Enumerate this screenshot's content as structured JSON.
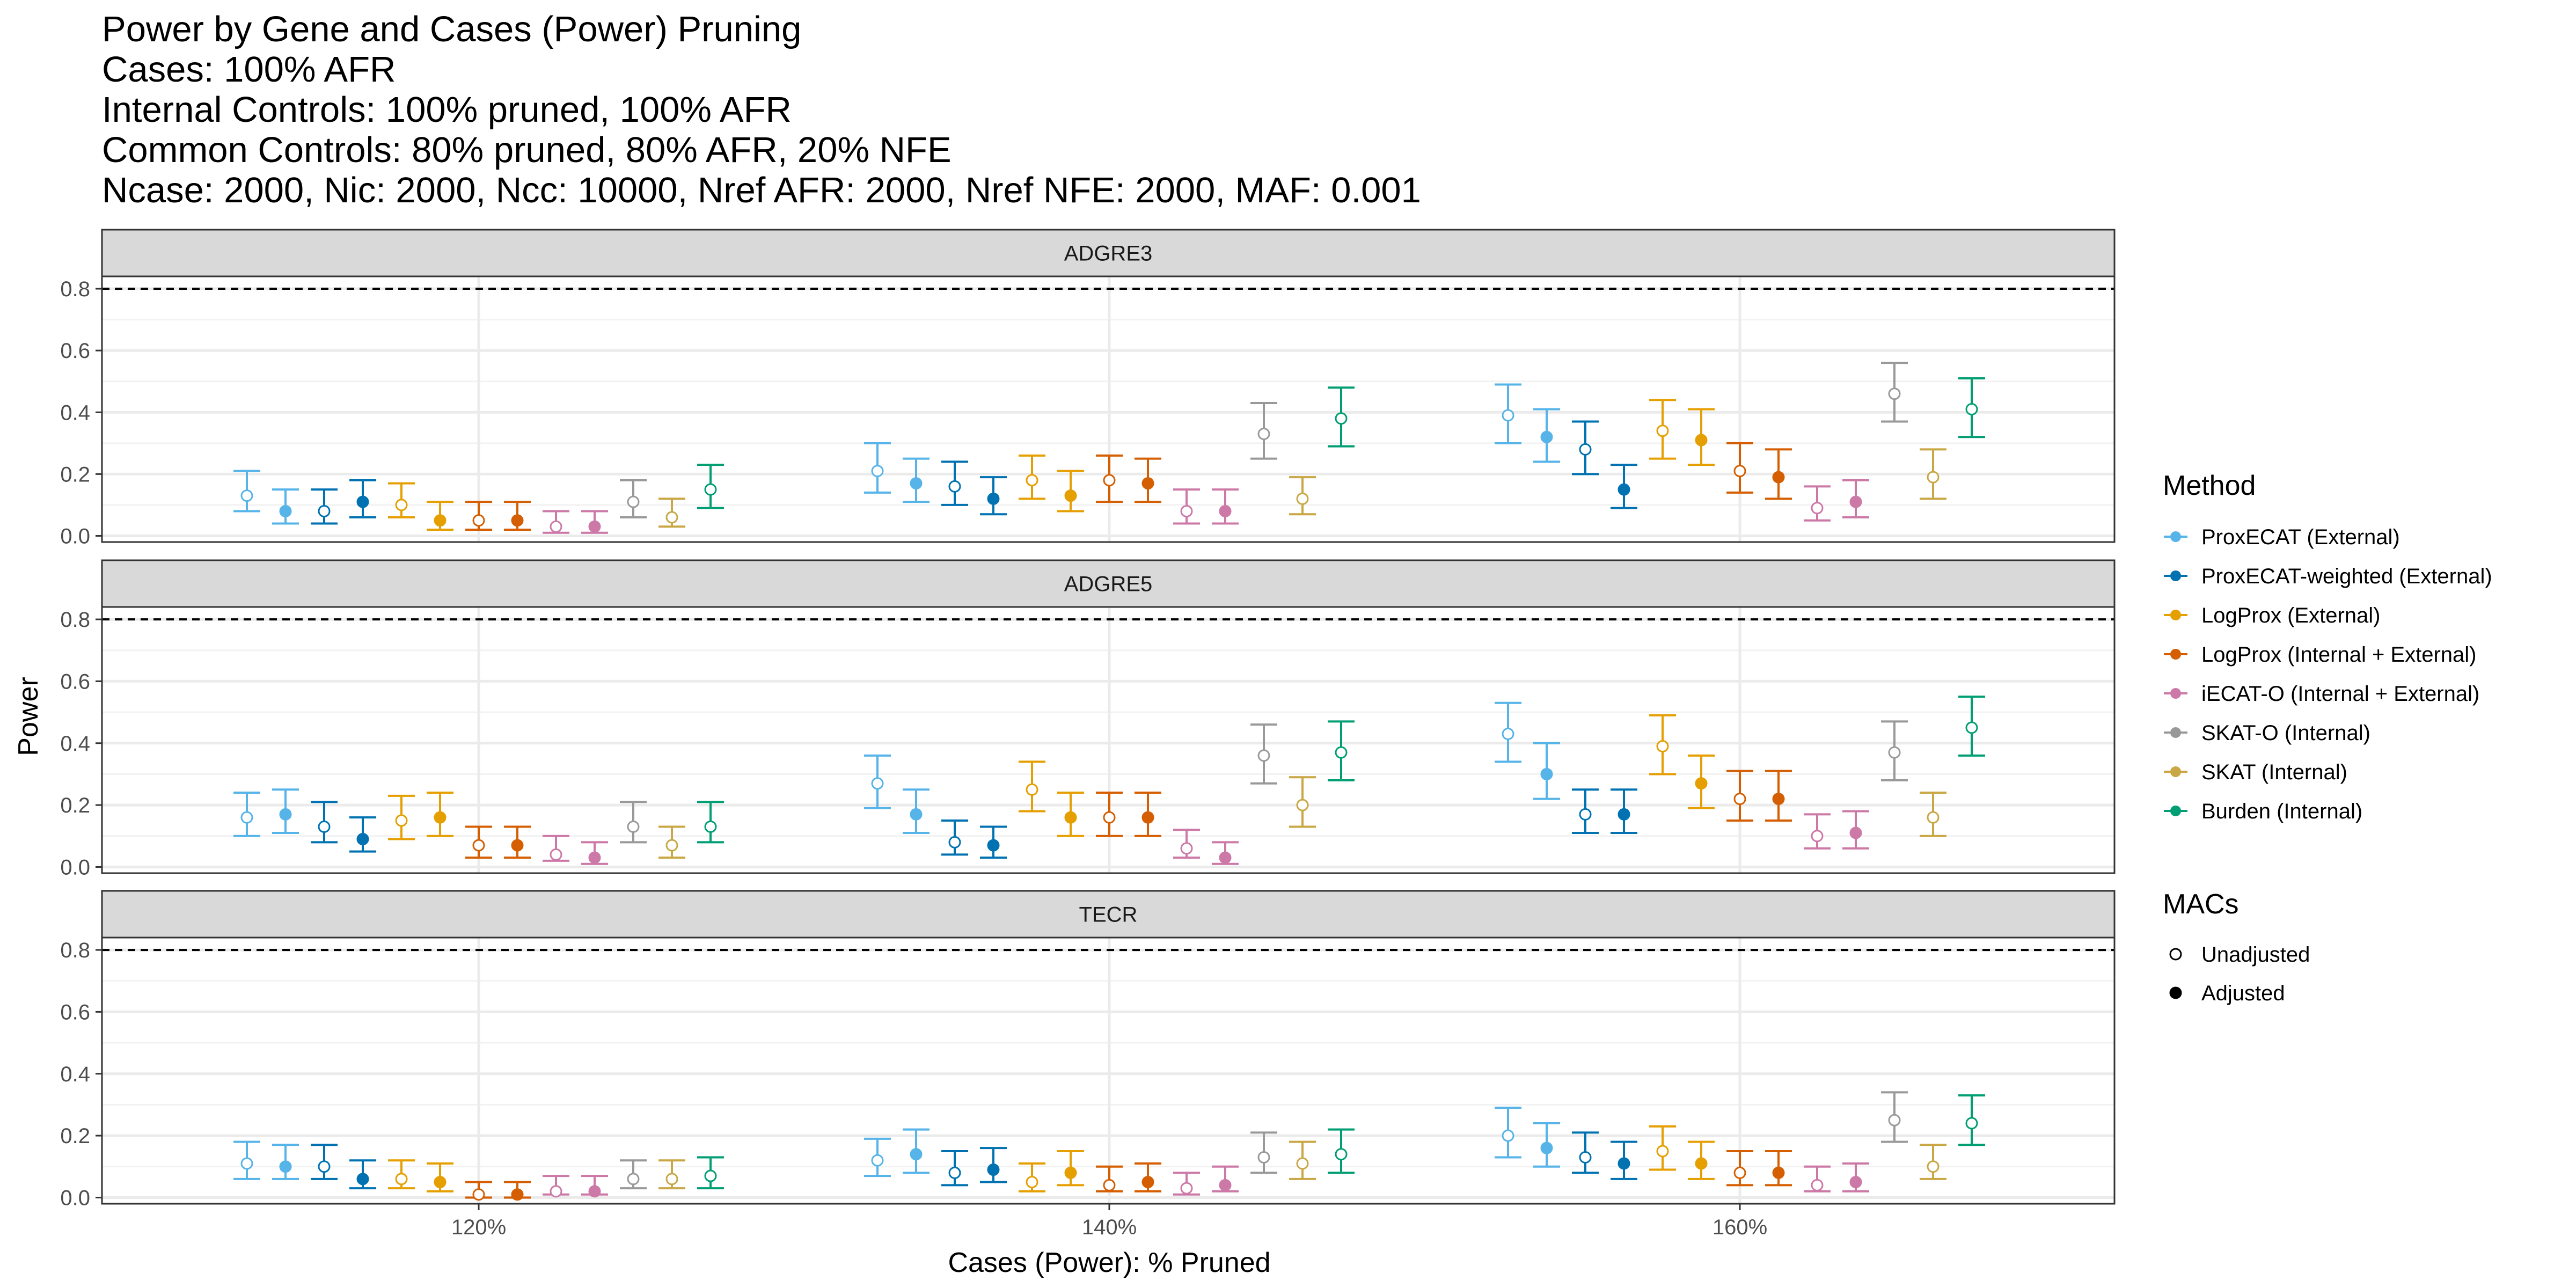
{
  "title_lines": [
    "Power by Gene and Cases (Power) Pruning",
    "Cases: 100% AFR",
    "Internal Controls: 100% pruned, 100% AFR",
    "Common Controls: 80% pruned, 80% AFR, 20% NFE",
    "Ncase: 2000, Nic: 2000, Ncc: 10000, Nref AFR: 2000, Nref NFE: 2000, MAF: 0.001"
  ],
  "chart_data": {
    "type": "scatter",
    "subtype": "point-errorbar, faceted",
    "xlabel": "Cases (Power): % Pruned",
    "ylabel": "Power",
    "categories": [
      "120%",
      "140%",
      "160%"
    ],
    "ylim": [
      -0.02,
      0.84
    ],
    "yticks": [
      0.0,
      0.2,
      0.4,
      0.6,
      0.8
    ],
    "ytick_labels": [
      "0.0",
      "0.2",
      "0.4",
      "0.6",
      "0.8"
    ],
    "reference_line": 0.8,
    "grid": true,
    "legend_position": "right",
    "legend": {
      "method_title": "Method",
      "macs_title": "MACs",
      "shapes": [
        {
          "name": "Unadjusted",
          "filled": false
        },
        {
          "name": "Adjusted",
          "filled": true
        }
      ]
    },
    "methods": [
      {
        "name": "ProxECAT (External)",
        "color": "#56B4E9"
      },
      {
        "name": "ProxECAT-weighted (External)",
        "color": "#0072B2"
      },
      {
        "name": "LogProx (External)",
        "color": "#E69F00"
      },
      {
        "name": "LogProx (Internal + External)",
        "color": "#D55E00"
      },
      {
        "name": "iECAT-O (Internal + External)",
        "color": "#CC79A7"
      },
      {
        "name": "SKAT-O (Internal)",
        "color": "#999999"
      },
      {
        "name": "SKAT (Internal)",
        "color": "#C9A745"
      },
      {
        "name": "Burden (Internal)",
        "color": "#009E73"
      }
    ],
    "series_order": [
      {
        "method": 0,
        "macs": "Unadjusted"
      },
      {
        "method": 0,
        "macs": "Adjusted"
      },
      {
        "method": 1,
        "macs": "Unadjusted"
      },
      {
        "method": 1,
        "macs": "Adjusted"
      },
      {
        "method": 2,
        "macs": "Unadjusted"
      },
      {
        "method": 2,
        "macs": "Adjusted"
      },
      {
        "method": 3,
        "macs": "Unadjusted"
      },
      {
        "method": 3,
        "macs": "Adjusted"
      },
      {
        "method": 4,
        "macs": "Unadjusted"
      },
      {
        "method": 4,
        "macs": "Adjusted"
      },
      {
        "method": 5,
        "macs": "Unadjusted"
      },
      {
        "method": 6,
        "macs": "Unadjusted"
      },
      {
        "method": 7,
        "macs": "Unadjusted"
      }
    ],
    "panels": [
      {
        "gene": "ADGRE3",
        "values": [
          [
            [
              0.13,
              0.08,
              0.21
            ],
            [
              0.08,
              0.04,
              0.15
            ],
            [
              0.08,
              0.04,
              0.15
            ],
            [
              0.11,
              0.06,
              0.18
            ],
            [
              0.1,
              0.06,
              0.17
            ],
            [
              0.05,
              0.02,
              0.11
            ],
            [
              0.05,
              0.02,
              0.11
            ],
            [
              0.05,
              0.02,
              0.11
            ],
            [
              0.03,
              0.01,
              0.08
            ],
            [
              0.03,
              0.01,
              0.08
            ],
            [
              0.11,
              0.06,
              0.18
            ],
            [
              0.06,
              0.03,
              0.12
            ],
            [
              0.15,
              0.09,
              0.23
            ]
          ],
          [
            [
              0.21,
              0.14,
              0.3
            ],
            [
              0.17,
              0.11,
              0.25
            ],
            [
              0.16,
              0.1,
              0.24
            ],
            [
              0.12,
              0.07,
              0.19
            ],
            [
              0.18,
              0.12,
              0.26
            ],
            [
              0.13,
              0.08,
              0.21
            ],
            [
              0.18,
              0.11,
              0.26
            ],
            [
              0.17,
              0.11,
              0.25
            ],
            [
              0.08,
              0.04,
              0.15
            ],
            [
              0.08,
              0.04,
              0.15
            ],
            [
              0.33,
              0.25,
              0.43
            ],
            [
              0.12,
              0.07,
              0.19
            ],
            [
              0.38,
              0.29,
              0.48
            ]
          ],
          [
            [
              0.39,
              0.3,
              0.49
            ],
            [
              0.32,
              0.24,
              0.41
            ],
            [
              0.28,
              0.2,
              0.37
            ],
            [
              0.15,
              0.09,
              0.23
            ],
            [
              0.34,
              0.25,
              0.44
            ],
            [
              0.31,
              0.23,
              0.41
            ],
            [
              0.21,
              0.14,
              0.3
            ],
            [
              0.19,
              0.12,
              0.28
            ],
            [
              0.09,
              0.05,
              0.16
            ],
            [
              0.11,
              0.06,
              0.18
            ],
            [
              0.46,
              0.37,
              0.56
            ],
            [
              0.19,
              0.12,
              0.28
            ],
            [
              0.41,
              0.32,
              0.51
            ]
          ]
        ]
      },
      {
        "gene": "ADGRE5",
        "values": [
          [
            [
              0.16,
              0.1,
              0.24
            ],
            [
              0.17,
              0.11,
              0.25
            ],
            [
              0.13,
              0.08,
              0.21
            ],
            [
              0.09,
              0.05,
              0.16
            ],
            [
              0.15,
              0.09,
              0.23
            ],
            [
              0.16,
              0.1,
              0.24
            ],
            [
              0.07,
              0.03,
              0.13
            ],
            [
              0.07,
              0.03,
              0.13
            ],
            [
              0.04,
              0.02,
              0.1
            ],
            [
              0.03,
              0.01,
              0.08
            ],
            [
              0.13,
              0.08,
              0.21
            ],
            [
              0.07,
              0.03,
              0.13
            ],
            [
              0.13,
              0.08,
              0.21
            ]
          ],
          [
            [
              0.27,
              0.19,
              0.36
            ],
            [
              0.17,
              0.11,
              0.25
            ],
            [
              0.08,
              0.04,
              0.15
            ],
            [
              0.07,
              0.03,
              0.13
            ],
            [
              0.25,
              0.18,
              0.34
            ],
            [
              0.16,
              0.1,
              0.24
            ],
            [
              0.16,
              0.1,
              0.24
            ],
            [
              0.16,
              0.1,
              0.24
            ],
            [
              0.06,
              0.03,
              0.12
            ],
            [
              0.03,
              0.01,
              0.08
            ],
            [
              0.36,
              0.27,
              0.46
            ],
            [
              0.2,
              0.13,
              0.29
            ],
            [
              0.37,
              0.28,
              0.47
            ]
          ],
          [
            [
              0.43,
              0.34,
              0.53
            ],
            [
              0.3,
              0.22,
              0.4
            ],
            [
              0.17,
              0.11,
              0.25
            ],
            [
              0.17,
              0.11,
              0.25
            ],
            [
              0.39,
              0.3,
              0.49
            ],
            [
              0.27,
              0.19,
              0.36
            ],
            [
              0.22,
              0.15,
              0.31
            ],
            [
              0.22,
              0.15,
              0.31
            ],
            [
              0.1,
              0.06,
              0.17
            ],
            [
              0.11,
              0.06,
              0.18
            ],
            [
              0.37,
              0.28,
              0.47
            ],
            [
              0.16,
              0.1,
              0.24
            ],
            [
              0.45,
              0.36,
              0.55
            ]
          ]
        ]
      },
      {
        "gene": "TECR",
        "values": [
          [
            [
              0.11,
              0.06,
              0.18
            ],
            [
              0.1,
              0.06,
              0.17
            ],
            [
              0.1,
              0.06,
              0.17
            ],
            [
              0.06,
              0.03,
              0.12
            ],
            [
              0.06,
              0.03,
              0.12
            ],
            [
              0.05,
              0.02,
              0.11
            ],
            [
              0.01,
              0.0,
              0.05
            ],
            [
              0.01,
              0.0,
              0.05
            ],
            [
              0.02,
              0.01,
              0.07
            ],
            [
              0.02,
              0.01,
              0.07
            ],
            [
              0.06,
              0.03,
              0.12
            ],
            [
              0.06,
              0.03,
              0.12
            ],
            [
              0.07,
              0.03,
              0.13
            ]
          ],
          [
            [
              0.12,
              0.07,
              0.19
            ],
            [
              0.14,
              0.08,
              0.22
            ],
            [
              0.08,
              0.04,
              0.15
            ],
            [
              0.09,
              0.05,
              0.16
            ],
            [
              0.05,
              0.02,
              0.11
            ],
            [
              0.08,
              0.04,
              0.15
            ],
            [
              0.04,
              0.02,
              0.1
            ],
            [
              0.05,
              0.02,
              0.11
            ],
            [
              0.03,
              0.01,
              0.08
            ],
            [
              0.04,
              0.02,
              0.1
            ],
            [
              0.13,
              0.08,
              0.21
            ],
            [
              0.11,
              0.06,
              0.18
            ],
            [
              0.14,
              0.08,
              0.22
            ]
          ],
          [
            [
              0.2,
              0.13,
              0.29
            ],
            [
              0.16,
              0.1,
              0.24
            ],
            [
              0.13,
              0.08,
              0.21
            ],
            [
              0.11,
              0.06,
              0.18
            ],
            [
              0.15,
              0.09,
              0.23
            ],
            [
              0.11,
              0.06,
              0.18
            ],
            [
              0.08,
              0.04,
              0.15
            ],
            [
              0.08,
              0.04,
              0.15
            ],
            [
              0.04,
              0.02,
              0.1
            ],
            [
              0.05,
              0.02,
              0.11
            ],
            [
              0.25,
              0.18,
              0.34
            ],
            [
              0.1,
              0.06,
              0.17
            ],
            [
              0.24,
              0.17,
              0.33
            ]
          ]
        ]
      }
    ]
  }
}
